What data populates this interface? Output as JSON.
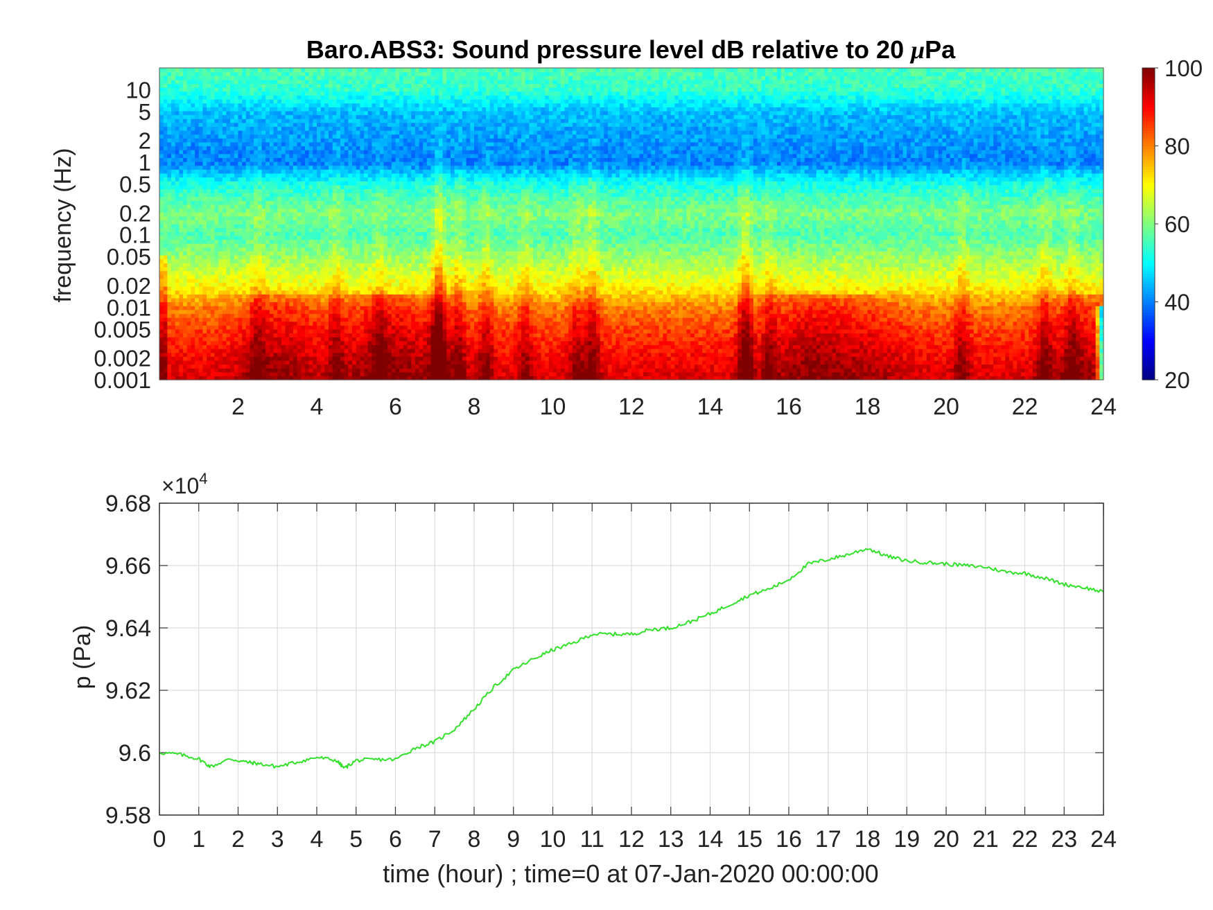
{
  "chart_data": [
    {
      "type": "heatmap",
      "title_prefix": "Baro.ABS3: Sound pressure level dB relative to 20 ",
      "title_mu": "μ",
      "title_suffix": "Pa",
      "ylabel": "frequency (Hz)",
      "xlabel": "",
      "x_ticks": [
        2,
        4,
        6,
        8,
        10,
        12,
        14,
        16,
        18,
        20,
        22,
        24
      ],
      "xlim": [
        0,
        24
      ],
      "y_scale": "log",
      "y_ticks": [
        {
          "value": 10,
          "label": "10"
        },
        {
          "value": 5,
          "label": "5"
        },
        {
          "value": 2,
          "label": "2"
        },
        {
          "value": 1,
          "label": "1"
        },
        {
          "value": 0.5,
          "label": "0.5"
        },
        {
          "value": 0.2,
          "label": "0.2"
        },
        {
          "value": 0.1,
          "label": "0.1"
        },
        {
          "value": 0.05,
          "label": "0.05"
        },
        {
          "value": 0.02,
          "label": "0.02"
        },
        {
          "value": 0.01,
          "label": "0.01"
        },
        {
          "value": 0.005,
          "label": "0.005"
        },
        {
          "value": 0.002,
          "label": "0.002"
        },
        {
          "value": 0.001,
          "label": "0.001"
        }
      ],
      "ylim": [
        0.001,
        20
      ],
      "colormap": "jet",
      "colorbar": {
        "ticks": [
          20,
          40,
          60,
          80,
          100
        ],
        "range": [
          20,
          100
        ]
      },
      "profile_freqs": [
        0.001,
        0.002,
        0.005,
        0.01,
        0.02,
        0.05,
        0.1,
        0.2,
        0.5,
        1,
        2,
        5,
        10,
        20
      ],
      "profile_db": [
        93,
        90,
        85,
        80,
        70,
        62,
        56,
        60,
        52,
        40,
        42,
        45,
        54,
        56
      ],
      "events": [
        {
          "time": 7.1,
          "strength": 1.0
        },
        {
          "time": 7.6,
          "strength": 0.5
        },
        {
          "time": 8.3,
          "strength": 0.5
        },
        {
          "time": 9.3,
          "strength": 0.4
        },
        {
          "time": 10.6,
          "strength": 0.45
        },
        {
          "time": 11.0,
          "strength": 0.6
        },
        {
          "time": 14.9,
          "strength": 0.85
        },
        {
          "time": 15.5,
          "strength": 0.4
        },
        {
          "time": 20.4,
          "strength": 0.45
        },
        {
          "time": 22.5,
          "strength": 0.45
        },
        {
          "time": 23.2,
          "strength": 0.4
        },
        {
          "time": 2.5,
          "strength": 0.4
        },
        {
          "time": 4.5,
          "strength": 0.4
        },
        {
          "time": 5.6,
          "strength": 0.35
        }
      ],
      "lowfreq_hotspots": [
        {
          "time": 3.0,
          "db": 98
        },
        {
          "time": 5.5,
          "db": 97
        },
        {
          "time": 6.5,
          "db": 96
        },
        {
          "time": 16.5,
          "db": 99
        },
        {
          "time": 18.0,
          "db": 96
        },
        {
          "time": 23.5,
          "db": 97
        }
      ]
    },
    {
      "type": "line",
      "ylabel": "p (Pa)",
      "xlabel": "time (hour) ; time=0 at 07-Jan-2020 00:00:00",
      "exponent_label": "×10",
      "exponent_power": "4",
      "x_ticks": [
        0,
        1,
        2,
        3,
        4,
        5,
        6,
        7,
        8,
        9,
        10,
        11,
        12,
        13,
        14,
        15,
        16,
        17,
        18,
        19,
        20,
        21,
        22,
        23,
        24
      ],
      "y_ticks": [
        {
          "value": 9.58,
          "label": "9.58"
        },
        {
          "value": 9.6,
          "label": "9.6"
        },
        {
          "value": 9.62,
          "label": "9.62"
        },
        {
          "value": 9.64,
          "label": "9.64"
        },
        {
          "value": 9.66,
          "label": "9.66"
        },
        {
          "value": 9.68,
          "label": "9.68"
        }
      ],
      "xlim": [
        0,
        24
      ],
      "ylim": [
        9.58,
        9.68
      ],
      "grid": true,
      "line_color": "#33e02a",
      "series": [
        {
          "x": [
            0,
            0.5,
            1.0,
            1.3,
            1.8,
            2.2,
            2.5,
            3.0,
            3.5,
            4.0,
            4.5,
            4.7,
            5.0,
            5.5,
            6.0,
            6.5,
            7.0,
            7.5,
            8.0,
            8.5,
            9.0,
            9.5,
            10.0,
            10.5,
            11.0,
            11.5,
            12.0,
            12.5,
            13.0,
            13.5,
            14.0,
            14.5,
            15.0,
            15.5,
            16.0,
            16.5,
            17.0,
            17.5,
            18.0,
            18.5,
            19.0,
            19.5,
            20.0,
            20.5,
            21.0,
            21.5,
            22.0,
            22.5,
            23.0,
            23.5,
            24.0
          ],
          "y": [
            9.6,
            9.5995,
            9.598,
            9.5955,
            9.598,
            9.597,
            9.5965,
            9.5955,
            9.597,
            9.5985,
            9.5975,
            9.595,
            9.5975,
            9.5978,
            9.5978,
            9.6015,
            9.6035,
            9.6075,
            9.614,
            9.621,
            9.6265,
            9.63,
            9.633,
            9.635,
            9.638,
            9.638,
            9.638,
            9.6395,
            9.64,
            9.642,
            9.6445,
            9.6475,
            9.6505,
            9.6525,
            9.6555,
            9.6605,
            9.662,
            9.6635,
            9.6655,
            9.663,
            9.6615,
            9.661,
            9.6605,
            9.66,
            9.6595,
            9.658,
            9.6575,
            9.656,
            9.654,
            9.653,
            9.6515
          ]
        }
      ]
    }
  ]
}
